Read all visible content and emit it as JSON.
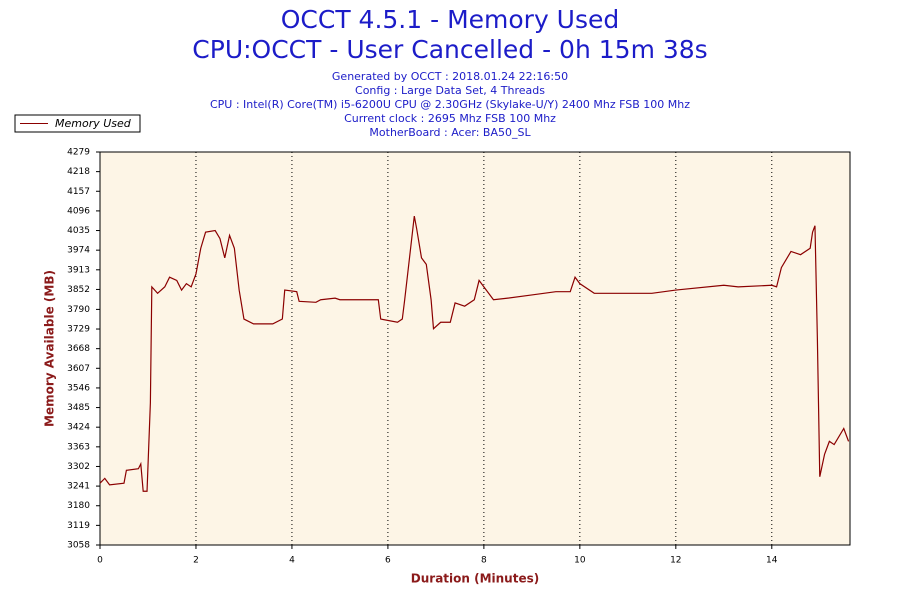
{
  "chart_data": {
    "type": "line",
    "title_lines": [
      "OCCT 4.5.1 - Memory Used",
      "CPU:OCCT - User Cancelled - 0h 15m 38s"
    ],
    "info_lines": [
      "Generated by OCCT : 2018.01.24 22:16:50",
      "Config : Large Data Set, 4 Threads",
      "CPU : Intel(R) Core(TM) i5-6200U CPU @ 2.30GHz (Skylake-U/Y) 2400 Mhz FSB 100 Mhz",
      "Current clock : 2695 Mhz FSB 100 Mhz",
      "MotherBoard : Acer: BA50_SL"
    ],
    "xlabel": "Duration (Minutes)",
    "ylabel": "Memory Available (MB)",
    "x": [
      0,
      0.1,
      0.2,
      0.5,
      0.55,
      0.8,
      0.85,
      0.9,
      0.98,
      1.05,
      1.08,
      1.2,
      1.35,
      1.45,
      1.6,
      1.7,
      1.8,
      1.9,
      2.0,
      2.1,
      2.2,
      2.4,
      2.5,
      2.6,
      2.7,
      2.8,
      2.9,
      3.0,
      3.2,
      3.6,
      3.8,
      3.85,
      4.1,
      4.15,
      4.5,
      4.6,
      4.9,
      5.0,
      5.8,
      5.85,
      6.2,
      6.3,
      6.35,
      6.45,
      6.55,
      6.6,
      6.7,
      6.8,
      6.9,
      6.95,
      7.1,
      7.3,
      7.4,
      7.6,
      7.8,
      7.9,
      8.0,
      8.2,
      8.5,
      9.0,
      9.5,
      9.8,
      9.9,
      10.0,
      10.3,
      11.5,
      12.0,
      13.0,
      13.3,
      14.0,
      14.1,
      14.2,
      14.4,
      14.6,
      14.8,
      14.85,
      14.9,
      14.95,
      15.0,
      15.1,
      15.2,
      15.3,
      15.5,
      15.6
    ],
    "series": [
      {
        "name": "Memory Used",
        "color": "#8b0000",
        "values": [
          3250,
          3265,
          3245,
          3250,
          3290,
          3295,
          3310,
          3225,
          3225,
          3500,
          3860,
          3840,
          3860,
          3890,
          3880,
          3850,
          3870,
          3860,
          3900,
          3980,
          4030,
          4035,
          4010,
          3950,
          4020,
          3980,
          3850,
          3760,
          3745,
          3745,
          3760,
          3850,
          3845,
          3815,
          3812,
          3820,
          3825,
          3820,
          3820,
          3760,
          3750,
          3760,
          3820,
          3950,
          4080,
          4040,
          3950,
          3930,
          3820,
          3730,
          3750,
          3750,
          3810,
          3800,
          3820,
          3880,
          3860,
          3820,
          3825,
          3835,
          3845,
          3845,
          3890,
          3870,
          3840,
          3840,
          3850,
          3865,
          3860,
          3865,
          3860,
          3920,
          3970,
          3960,
          3980,
          4030,
          4050,
          3700,
          3270,
          3340,
          3380,
          3370,
          3420,
          3380
        ]
      }
    ],
    "xlim": [
      0,
      15.63
    ],
    "xticks": [
      0,
      2,
      4,
      6,
      8,
      10,
      12,
      14
    ],
    "ylim": [
      3058,
      4279
    ],
    "yticks": [
      3058,
      3119,
      3180,
      3241,
      3302,
      3363,
      3424,
      3485,
      3546,
      3607,
      3668,
      3729,
      3790,
      3852,
      3913,
      3974,
      4035,
      4096,
      4157,
      4218,
      4279
    ],
    "grid": "x",
    "legend": "top-left",
    "background": "#fdf5e6"
  }
}
